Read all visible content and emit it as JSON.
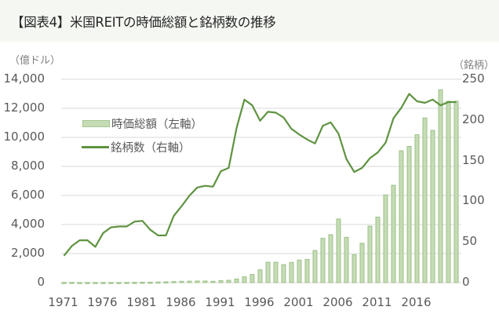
{
  "title": "【図表4】米国REITの時価総額と銘柄数の推移",
  "left_unit": "（億ドル）",
  "right_unit": "（銘柄）",
  "left_ticks": [
    "14,000",
    "12,000",
    "10,000",
    "8,000",
    "6,000",
    "4,000",
    "2,000",
    "0"
  ],
  "right_ticks": [
    "250",
    "200",
    "150",
    "100",
    "50",
    "0"
  ],
  "x_ticks": [
    "1971",
    "1976",
    "1981",
    "1986",
    "1991",
    "1996",
    "2001",
    "2006",
    "2011",
    "2016"
  ],
  "legend": {
    "bar_label": "時価総額（左軸）",
    "line_label": "銘柄数（右軸）"
  },
  "colors": {
    "bar_fill": "#c5dcb6",
    "bar_stroke": "#9cc185",
    "line": "#5f9341",
    "grid": "#d9d9d9",
    "title_band": "#f5f8f2"
  },
  "chart_data": {
    "type": "bar+line",
    "title": "【図表4】米国REITの時価総額と銘柄数の推移",
    "xlabel": "",
    "ylabel_left": "（億ドル）",
    "ylabel_right": "（銘柄）",
    "ylim_left": [
      0,
      14000
    ],
    "ylim_right": [
      0,
      250
    ],
    "grid": true,
    "legend_position": "upper-left inside",
    "categories": [
      "1971",
      "1972",
      "1973",
      "1974",
      "1975",
      "1976",
      "1977",
      "1978",
      "1979",
      "1980",
      "1981",
      "1982",
      "1983",
      "1984",
      "1985",
      "1986",
      "1987",
      "1988",
      "1989",
      "1990",
      "1991",
      "1992",
      "1993",
      "1994",
      "1995",
      "1996",
      "1997",
      "1998",
      "1999",
      "2000",
      "2001",
      "2002",
      "2003",
      "2004",
      "2005",
      "2006",
      "2007",
      "2008",
      "2009",
      "2010",
      "2011",
      "2012",
      "2013",
      "2014",
      "2015",
      "2016",
      "2017",
      "2018",
      "2019",
      "2020",
      "2021"
    ],
    "series": [
      {
        "name": "時価総額（左軸）",
        "type": "bar",
        "axis": "left",
        "values": [
          15,
          15,
          10,
          10,
          10,
          10,
          10,
          10,
          15,
          20,
          25,
          30,
          40,
          55,
          70,
          90,
          100,
          110,
          110,
          90,
          130,
          160,
          250,
          400,
          560,
          880,
          1400,
          1400,
          1240,
          1390,
          1550,
          1600,
          2210,
          3050,
          3300,
          4380,
          3120,
          1920,
          2710,
          3890,
          4510,
          6040,
          6700,
          9080,
          9380,
          10180,
          11340,
          10480,
          13280,
          12490,
          12490
        ]
      },
      {
        "name": "銘柄数（右軸）",
        "type": "line",
        "axis": "right",
        "values": [
          33,
          45,
          52,
          52,
          44,
          61,
          68,
          69,
          69,
          75,
          76,
          65,
          58,
          58,
          82,
          94,
          107,
          117,
          119,
          118,
          137,
          141,
          190,
          225,
          218,
          199,
          210,
          209,
          203,
          189,
          182,
          176,
          171,
          193,
          197,
          183,
          152,
          136,
          141,
          153,
          160,
          172,
          202,
          215,
          232,
          223,
          221,
          225,
          218,
          222,
          222
        ]
      }
    ]
  }
}
